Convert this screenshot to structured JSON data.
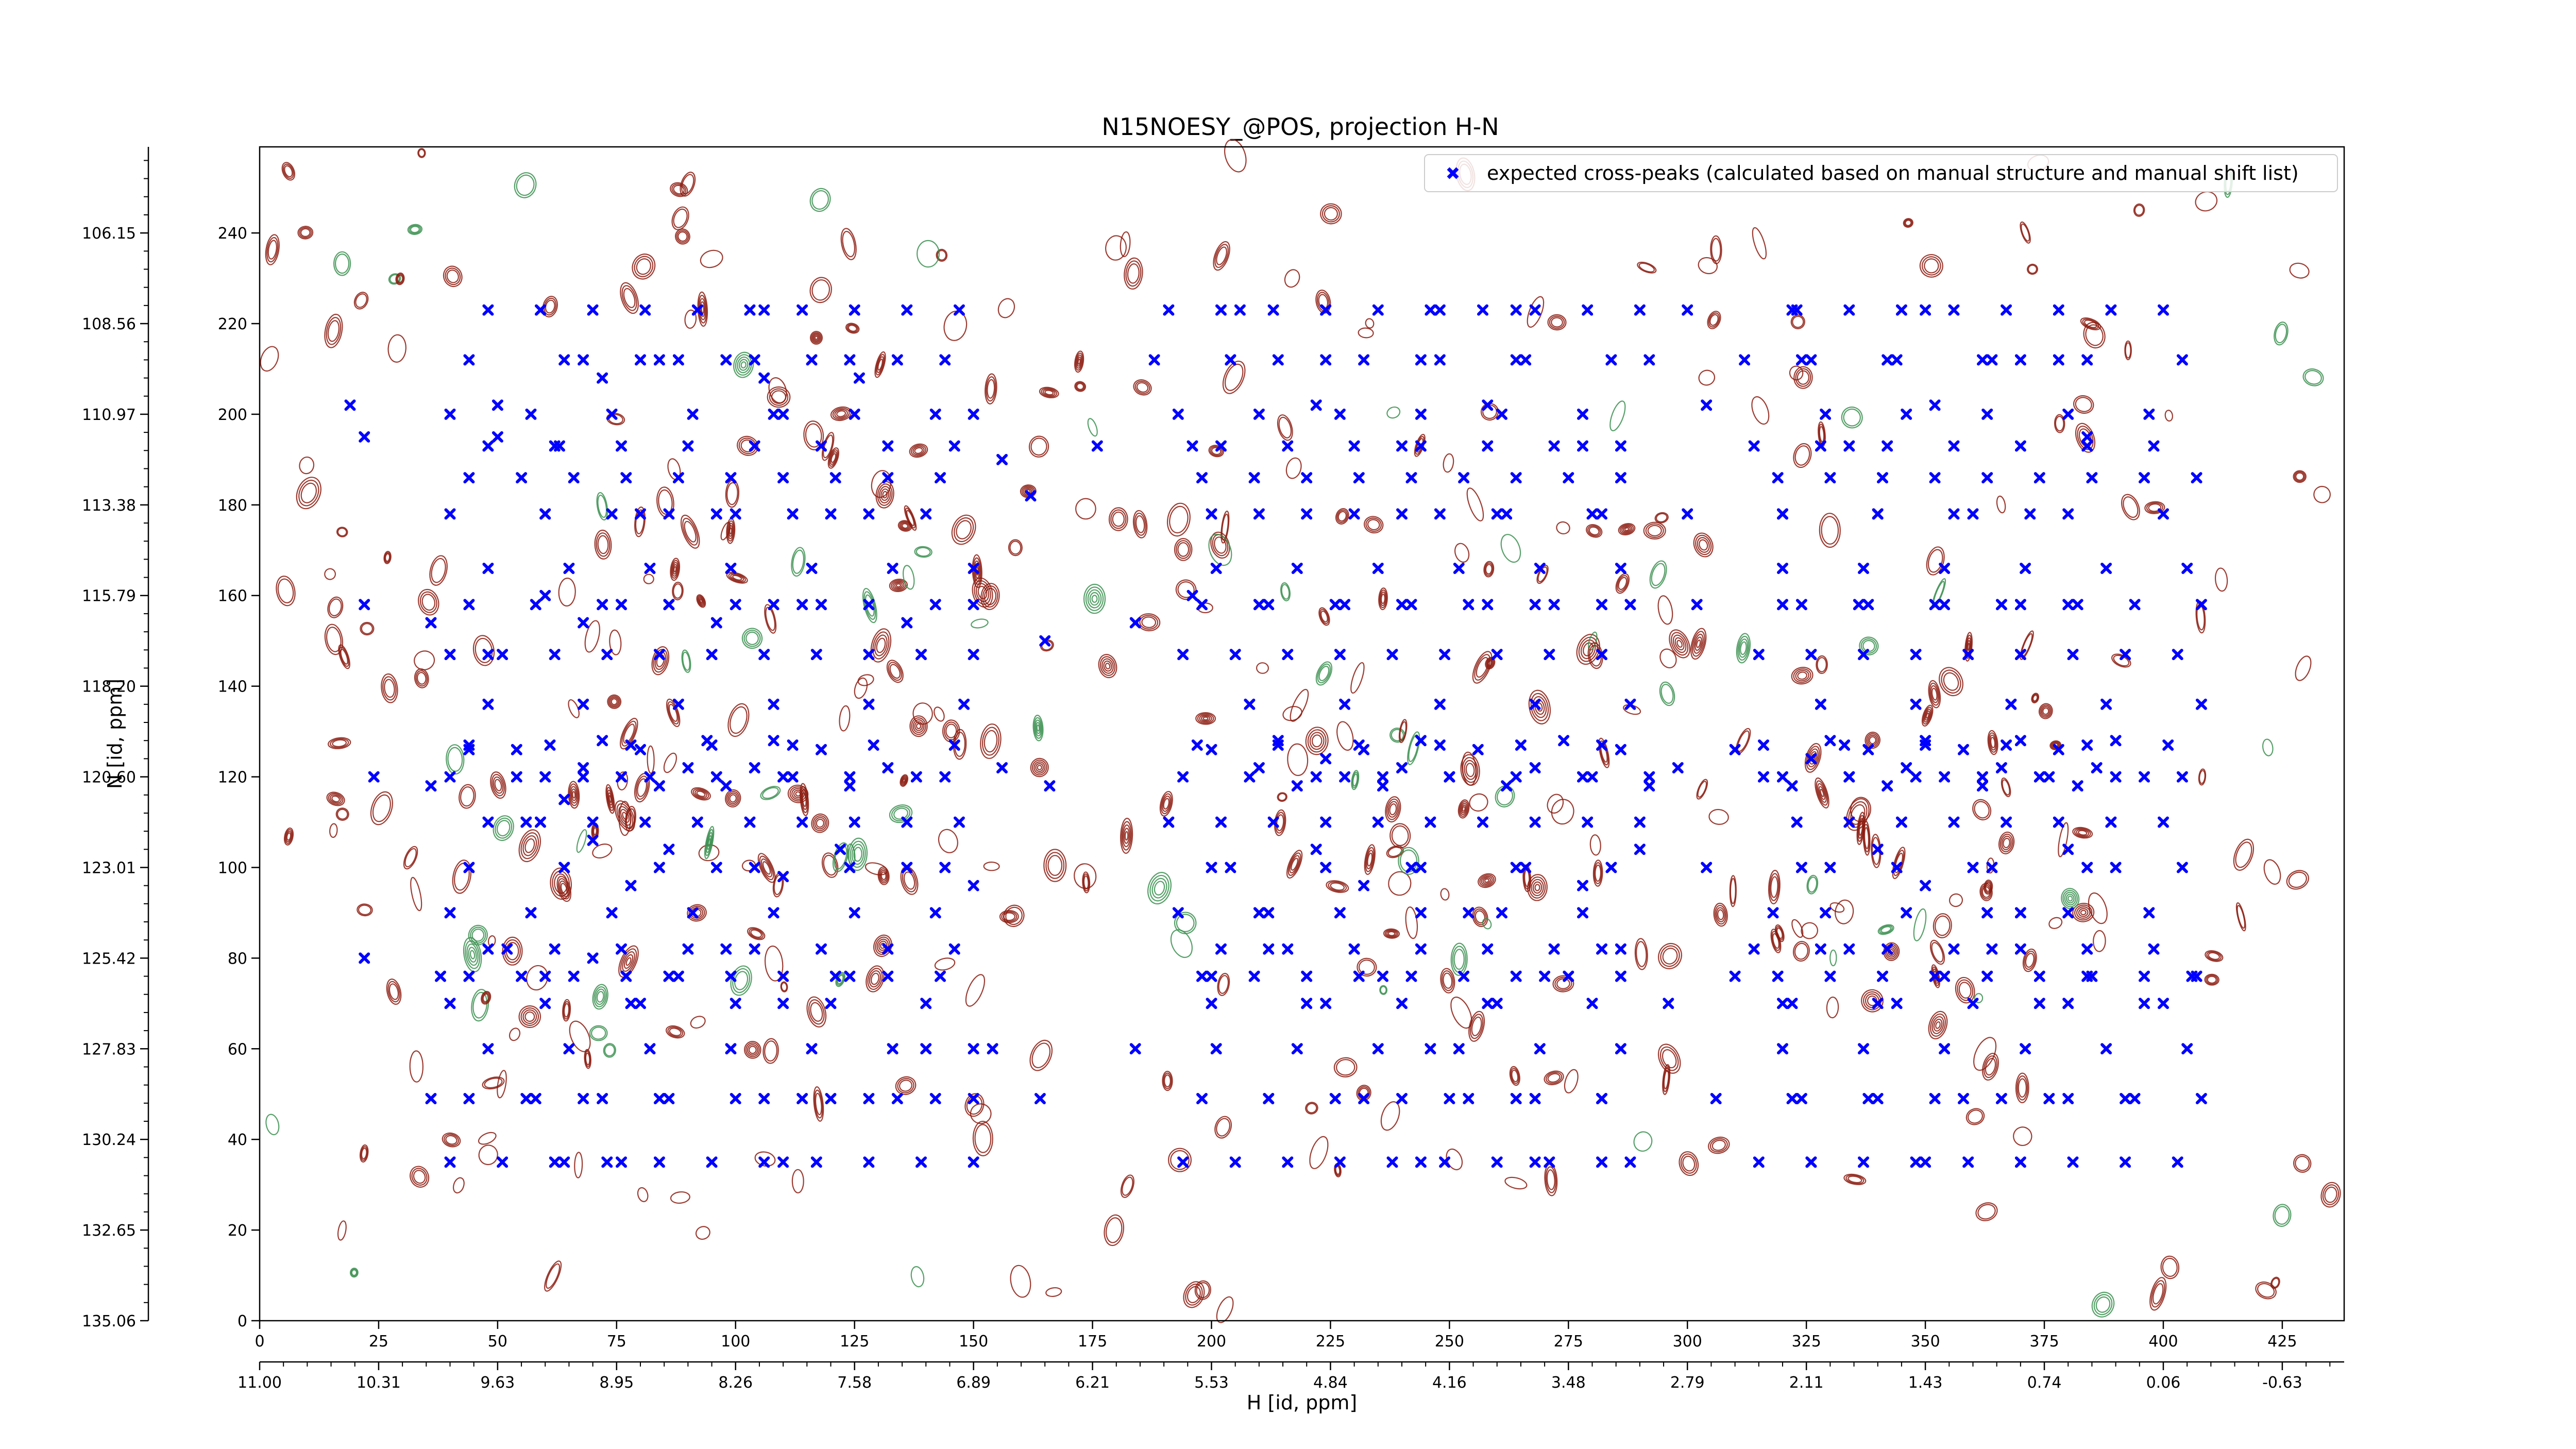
{
  "chart_data": {
    "type": "scatter",
    "title": "N15NOESY_@POS, projection H-N",
    "xlabel": "H [id, ppm]",
    "ylabel": "N [id, ppm]",
    "xlim": [
      0,
      438
    ],
    "ylim": [
      0,
      259
    ],
    "x_index_ticks": [
      "0",
      "25",
      "50",
      "75",
      "100",
      "125",
      "150",
      "175",
      "200",
      "225",
      "250",
      "275",
      "300",
      "325",
      "350",
      "375",
      "400",
      "425"
    ],
    "x_ppm_ticks": [
      "11.00",
      "10.31",
      "9.63",
      "8.95",
      "8.26",
      "7.58",
      "6.89",
      "6.21",
      "5.53",
      "4.84",
      "4.16",
      "3.48",
      "2.79",
      "2.11",
      "1.43",
      "0.74",
      "0.06",
      "-0.63"
    ],
    "y_index_ticks": [
      "0",
      "20",
      "40",
      "60",
      "80",
      "100",
      "120",
      "140",
      "160",
      "180",
      "200",
      "220",
      "240"
    ],
    "y_ppm_ticks": [
      "135.06",
      "132.65",
      "130.24",
      "127.83",
      "125.42",
      "123.01",
      "120.60",
      "118.20",
      "115.79",
      "113.38",
      "110.97",
      "108.56",
      "106.15"
    ],
    "grid": false,
    "legend_position": "top-right",
    "series": [
      {
        "name": "expected cross-peaks (calculated based on manual structure and manual shift list)",
        "color": "#0000ff",
        "marker": "x",
        "row_y": [
          35,
          49,
          60,
          70,
          76,
          82,
          90,
          100,
          110,
          120,
          127,
          136,
          147,
          158,
          166,
          178,
          186,
          193,
          200,
          212,
          223
        ],
        "points": [
          [
            19,
            202
          ],
          [
            22,
            195
          ],
          [
            50,
            202
          ],
          [
            50,
            195
          ],
          [
            63,
            193
          ],
          [
            68,
            212
          ],
          [
            72,
            208
          ],
          [
            80,
            212
          ],
          [
            88,
            212
          ],
          [
            98,
            212
          ],
          [
            106,
            208
          ],
          [
            110,
            200
          ],
          [
            116,
            212
          ],
          [
            126,
            208
          ],
          [
            134,
            212
          ],
          [
            150,
            200
          ],
          [
            156,
            190
          ],
          [
            162,
            182
          ],
          [
            176,
            193
          ],
          [
            188,
            212
          ],
          [
            196,
            193
          ],
          [
            204,
            212
          ],
          [
            214,
            212
          ],
          [
            222,
            202
          ],
          [
            232,
            212
          ],
          [
            240,
            193
          ],
          [
            248,
            212
          ],
          [
            258,
            202
          ],
          [
            266,
            212
          ],
          [
            278,
            193
          ],
          [
            292,
            212
          ],
          [
            304,
            202
          ],
          [
            312,
            212
          ],
          [
            326,
            212
          ],
          [
            334,
            193
          ],
          [
            342,
            212
          ],
          [
            352,
            202
          ],
          [
            362,
            212
          ],
          [
            370,
            212
          ],
          [
            378,
            212
          ],
          [
            384,
            195
          ],
          [
            206,
            223
          ],
          [
            224,
            223
          ],
          [
            248,
            223
          ],
          [
            264,
            223
          ],
          [
            300,
            223
          ],
          [
            322,
            223
          ],
          [
            350,
            223
          ],
          [
            106,
            223
          ],
          [
            22,
            158
          ],
          [
            36,
            154
          ],
          [
            48,
            147
          ],
          [
            60,
            160
          ],
          [
            68,
            154
          ],
          [
            76,
            158
          ],
          [
            86,
            158
          ],
          [
            96,
            154
          ],
          [
            108,
            158
          ],
          [
            118,
            158
          ],
          [
            136,
            154
          ],
          [
            150,
            158
          ],
          [
            165,
            150
          ],
          [
            184,
            154
          ],
          [
            196,
            160
          ],
          [
            210,
            158
          ],
          [
            228,
            158
          ],
          [
            242,
            158
          ],
          [
            258,
            158
          ],
          [
            272,
            158
          ],
          [
            288,
            158
          ],
          [
            302,
            158
          ],
          [
            320,
            158
          ],
          [
            336,
            158
          ],
          [
            354,
            158
          ],
          [
            370,
            158
          ],
          [
            382,
            158
          ],
          [
            60,
            178
          ],
          [
            74,
            178
          ],
          [
            86,
            178
          ],
          [
            96,
            178
          ],
          [
            112,
            178
          ],
          [
            128,
            178
          ],
          [
            210,
            178
          ],
          [
            230,
            178
          ],
          [
            248,
            178
          ],
          [
            262,
            178
          ],
          [
            282,
            178
          ],
          [
            300,
            178
          ],
          [
            320,
            178
          ],
          [
            340,
            178
          ],
          [
            356,
            178
          ],
          [
            372,
            178
          ],
          [
            24,
            120
          ],
          [
            36,
            118
          ],
          [
            44,
            126
          ],
          [
            54,
            126
          ],
          [
            60,
            120
          ],
          [
            64,
            115
          ],
          [
            68,
            122
          ],
          [
            72,
            128
          ],
          [
            76,
            120
          ],
          [
            80,
            126
          ],
          [
            84,
            118
          ],
          [
            90,
            122
          ],
          [
            94,
            128
          ],
          [
            98,
            118
          ],
          [
            104,
            122
          ],
          [
            108,
            128
          ],
          [
            112,
            120
          ],
          [
            118,
            126
          ],
          [
            124,
            118
          ],
          [
            132,
            122
          ],
          [
            144,
            120
          ],
          [
            156,
            122
          ],
          [
            166,
            118
          ],
          [
            200,
            126
          ],
          [
            210,
            122
          ],
          [
            214,
            128
          ],
          [
            218,
            118
          ],
          [
            224,
            124
          ],
          [
            228,
            120
          ],
          [
            232,
            126
          ],
          [
            236,
            118
          ],
          [
            240,
            122
          ],
          [
            244,
            128
          ],
          [
            250,
            120
          ],
          [
            256,
            126
          ],
          [
            262,
            118
          ],
          [
            268,
            122
          ],
          [
            274,
            128
          ],
          [
            280,
            120
          ],
          [
            286,
            126
          ],
          [
            292,
            118
          ],
          [
            298,
            122
          ],
          [
            310,
            126
          ],
          [
            316,
            120
          ],
          [
            322,
            118
          ],
          [
            326,
            124
          ],
          [
            330,
            128
          ],
          [
            334,
            120
          ],
          [
            338,
            126
          ],
          [
            342,
            118
          ],
          [
            346,
            122
          ],
          [
            350,
            128
          ],
          [
            354,
            120
          ],
          [
            358,
            126
          ],
          [
            362,
            118
          ],
          [
            366,
            122
          ],
          [
            370,
            128
          ],
          [
            374,
            120
          ],
          [
            378,
            126
          ],
          [
            382,
            118
          ],
          [
            386,
            122
          ],
          [
            390,
            128
          ],
          [
            396,
            120
          ],
          [
            56,
            110
          ],
          [
            64,
            100
          ],
          [
            70,
            106
          ],
          [
            78,
            96
          ],
          [
            86,
            104
          ],
          [
            96,
            100
          ],
          [
            110,
            98
          ],
          [
            122,
            104
          ],
          [
            136,
            100
          ],
          [
            150,
            96
          ],
          [
            200,
            100
          ],
          [
            212,
            90
          ],
          [
            222,
            104
          ],
          [
            232,
            96
          ],
          [
            242,
            100
          ],
          [
            254,
            90
          ],
          [
            266,
            100
          ],
          [
            278,
            96
          ],
          [
            290,
            104
          ],
          [
            304,
            100
          ],
          [
            318,
            90
          ],
          [
            330,
            100
          ],
          [
            340,
            104
          ],
          [
            350,
            96
          ],
          [
            360,
            100
          ],
          [
            370,
            90
          ],
          [
            380,
            104
          ],
          [
            390,
            100
          ],
          [
            22,
            80
          ],
          [
            38,
            76
          ],
          [
            52,
            82
          ],
          [
            60,
            76
          ],
          [
            70,
            80
          ],
          [
            78,
            70
          ],
          [
            86,
            76
          ],
          [
            98,
            82
          ],
          [
            110,
            70
          ],
          [
            124,
            76
          ],
          [
            140,
            60
          ],
          [
            154,
            60
          ],
          [
            184,
            60
          ],
          [
            200,
            76
          ],
          [
            212,
            82
          ],
          [
            224,
            70
          ],
          [
            236,
            76
          ],
          [
            246,
            60
          ],
          [
            258,
            70
          ],
          [
            270,
            76
          ],
          [
            282,
            82
          ],
          [
            296,
            70
          ],
          [
            310,
            76
          ],
          [
            322,
            70
          ],
          [
            334,
            82
          ],
          [
            344,
            70
          ],
          [
            354,
            76
          ],
          [
            364,
            82
          ],
          [
            374,
            70
          ],
          [
            384,
            76
          ],
          [
            396,
            70
          ],
          [
            406,
            76
          ],
          [
            36,
            49
          ],
          [
            56,
            49
          ],
          [
            68,
            49
          ],
          [
            84,
            49
          ],
          [
            106,
            49
          ],
          [
            120,
            49
          ],
          [
            134,
            49
          ],
          [
            150,
            49
          ],
          [
            164,
            49
          ],
          [
            212,
            49
          ],
          [
            232,
            49
          ],
          [
            250,
            49
          ],
          [
            264,
            49
          ],
          [
            282,
            49
          ],
          [
            306,
            49
          ],
          [
            322,
            49
          ],
          [
            340,
            49
          ],
          [
            358,
            49
          ],
          [
            376,
            49
          ],
          [
            392,
            49
          ],
          [
            64,
            35
          ],
          [
            76,
            35
          ],
          [
            110,
            35
          ],
          [
            244,
            35
          ],
          [
            268,
            35
          ],
          [
            288,
            35
          ],
          [
            326,
            35
          ],
          [
            350,
            35
          ]
        ]
      }
    ]
  }
}
